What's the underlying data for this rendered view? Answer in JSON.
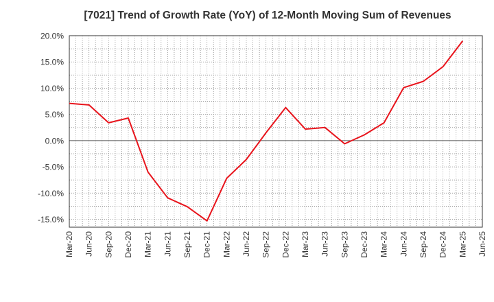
{
  "chart_data": {
    "type": "line",
    "title": "[7021]  Trend of Growth Rate (YoY) of 12-Month Moving Sum of Revenues",
    "xlabel": "",
    "ylabel": "",
    "x_ticks": [
      "Mar-20",
      "Jun-20",
      "Sep-20",
      "Dec-20",
      "Mar-21",
      "Jun-21",
      "Sep-21",
      "Dec-21",
      "Mar-22",
      "Jun-22",
      "Sep-22",
      "Dec-22",
      "Mar-23",
      "Jun-23",
      "Sep-23",
      "Dec-23",
      "Mar-24",
      "Jun-24",
      "Sep-24",
      "Dec-24",
      "Mar-25",
      "Jun-25"
    ],
    "y_ticks": [
      "20.0%",
      "15.0%",
      "10.0%",
      "5.0%",
      "0.0%",
      "-5.0%",
      "-10.0%",
      "-15.0%"
    ],
    "y_tick_values": [
      20,
      15,
      10,
      5,
      0,
      -5,
      -10,
      -15
    ],
    "ylim": [
      -16.5,
      20.0
    ],
    "grid": true,
    "series": [
      {
        "color": "#e8141c",
        "x": [
          "Mar-20",
          "Jun-20",
          "Sep-20",
          "Dec-20",
          "Mar-21",
          "Jun-21",
          "Sep-21",
          "Dec-21",
          "Mar-22",
          "Jun-22",
          "Sep-22",
          "Dec-22",
          "Mar-23",
          "Jun-23",
          "Sep-23",
          "Dec-23",
          "Mar-24",
          "Jun-24",
          "Sep-24",
          "Dec-24",
          "Mar-25"
        ],
        "values": [
          7.1,
          6.8,
          3.4,
          4.3,
          -6.0,
          -10.9,
          -12.6,
          -15.3,
          -7.2,
          -3.6,
          1.5,
          6.3,
          2.2,
          2.5,
          -0.6,
          1.1,
          3.4,
          10.1,
          11.3,
          14.1,
          19.0
        ]
      }
    ]
  }
}
